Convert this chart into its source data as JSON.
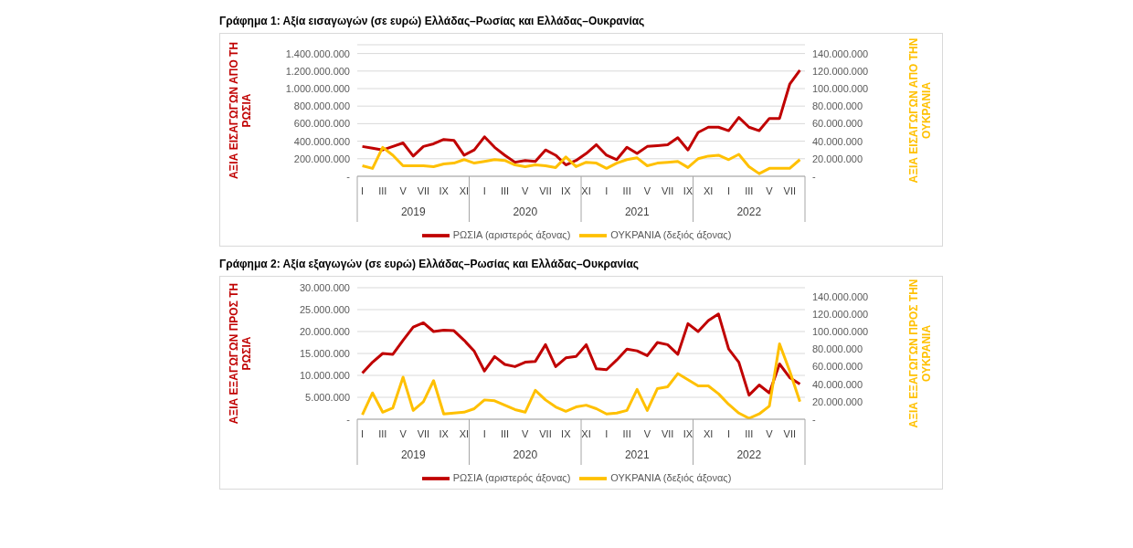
{
  "chart_data": [
    {
      "type": "line",
      "title": "Γράφημα 1: Αξία εισαγωγών (σε ευρώ) Ελλάδας–Ρωσίας και Ελλάδας–Ουκρανίας",
      "ylabel": "ΑΞΙΑ ΕΙΣΑΓΩΓΩΝ ΑΠΟ ΤΗ ΡΩΣΙΑ",
      "y2label": "ΑΞΙΑ ΕΙΣΑΓΩΓΩΝ ΑΠΟ ΤΗΝ ΟΥΚΡΑΝΙΑ",
      "categories": [
        "I",
        null,
        "III",
        null,
        "V",
        null,
        "VII",
        null,
        "IX",
        null,
        "XI",
        null,
        "I",
        null,
        "III",
        null,
        "V",
        null,
        "VII",
        null,
        "IX",
        null,
        "XI",
        null,
        "I",
        null,
        "III",
        null,
        "V",
        null,
        "VII",
        null,
        "IX",
        null,
        "XI",
        null,
        "I",
        null,
        "III",
        null,
        "V",
        null,
        "VII",
        null
      ],
      "annotations": [
        "2019",
        "2020",
        "2021",
        "2022"
      ],
      "series": [
        {
          "name": "ΡΩΣΙΑ (αριστερός άξονας)",
          "color": "#c00000",
          "values": [
            340000000,
            320000000,
            300000000,
            340000000,
            380000000,
            230000000,
            340000000,
            370000000,
            420000000,
            410000000,
            240000000,
            300000000,
            450000000,
            330000000,
            240000000,
            160000000,
            180000000,
            170000000,
            300000000,
            240000000,
            130000000,
            180000000,
            260000000,
            360000000,
            240000000,
            190000000,
            330000000,
            260000000,
            340000000,
            350000000,
            360000000,
            440000000,
            300000000,
            500000000,
            560000000,
            560000000,
            520000000,
            670000000,
            560000000,
            520000000,
            660000000,
            660000000,
            1050000000,
            1210000000
          ]
        },
        {
          "name": "ΟΥΚΡΑΝΙΑ (δεξιός άξονας)",
          "color": "#ffc000",
          "axis": "y2",
          "values": [
            12000000,
            9000000,
            33000000,
            24000000,
            12000000,
            12000000,
            12000000,
            11000000,
            14000000,
            15000000,
            19000000,
            15000000,
            17000000,
            19000000,
            18000000,
            13000000,
            11000000,
            13000000,
            12000000,
            10000000,
            22000000,
            11000000,
            16000000,
            15000000,
            9000000,
            15000000,
            19000000,
            21000000,
            12000000,
            15000000,
            16000000,
            17000000,
            10000000,
            20000000,
            23000000,
            24000000,
            19000000,
            25000000,
            11000000,
            3000000,
            9000000,
            9000000,
            9000000,
            19000000
          ]
        }
      ],
      "ylim": [
        0,
        1500000000
      ],
      "yticks": [
        {
          "value": 0,
          "label": "-"
        },
        {
          "value": 200000000,
          "label": "200.000.000"
        },
        {
          "value": 400000000,
          "label": "400.000.000"
        },
        {
          "value": 600000000,
          "label": "600.000.000"
        },
        {
          "value": 800000000,
          "label": "800.000.000"
        },
        {
          "value": 1000000000,
          "label": "1.000.000.000"
        },
        {
          "value": 1200000000,
          "label": "1.200.000.000"
        },
        {
          "value": 1400000000,
          "label": "1.400.000.000"
        }
      ],
      "y2lim": [
        0,
        150000000
      ],
      "y2ticks": [
        {
          "value": 0,
          "label": "-"
        },
        {
          "value": 20000000,
          "label": "20.000.000"
        },
        {
          "value": 40000000,
          "label": "40.000.000"
        },
        {
          "value": 60000000,
          "label": "60.000.000"
        },
        {
          "value": 80000000,
          "label": "80.000.000"
        },
        {
          "value": 100000000,
          "label": "100.000.000"
        },
        {
          "value": 120000000,
          "label": "120.000.000"
        },
        {
          "value": 140000000,
          "label": "140.000.000"
        }
      ],
      "grid": "y",
      "legend": "bottom",
      "marker": "none",
      "line_style": "solid"
    },
    {
      "type": "line",
      "title": "Γράφημα 2: Αξία εξαγωγών (σε ευρώ) Ελλάδας–Ρωσίας και Ελλάδας–Ουκρανίας",
      "ylabel": "ΑΞΙΑ ΕΞΑΓΩΓΩΝ ΠΡΟΣ ΤΗ ΡΩΣΙΑ",
      "y2label": "ΑΞΙΑ ΕΞΑΓΩΓΩΝ ΠΡΟΣ ΤΗΝ ΟΥΚΡΑΝΙΑ",
      "categories": [
        "I",
        null,
        "III",
        null,
        "V",
        null,
        "VII",
        null,
        "IX",
        null,
        "XI",
        null,
        "I",
        null,
        "III",
        null,
        "V",
        null,
        "VII",
        null,
        "IX",
        null,
        "XI",
        null,
        "I",
        null,
        "III",
        null,
        "V",
        null,
        "VII",
        null,
        "IX",
        null,
        "XI",
        null,
        "I",
        null,
        "III",
        null,
        "V",
        null,
        "VII",
        null
      ],
      "annotations": [
        "2019",
        "2020",
        "2021",
        "2022"
      ],
      "series": [
        {
          "name": "ΡΩΣΙΑ (αριστερός άξονας)",
          "color": "#c00000",
          "values": [
            10500000,
            13000000,
            15000000,
            14800000,
            18000000,
            21000000,
            22000000,
            20000000,
            20300000,
            20200000,
            18000000,
            15500000,
            11000000,
            14300000,
            12500000,
            12000000,
            13000000,
            13200000,
            17000000,
            12000000,
            14000000,
            14300000,
            17000000,
            11500000,
            11300000,
            13500000,
            16000000,
            15600000,
            14500000,
            17500000,
            17000000,
            14800000,
            21800000,
            20000000,
            22500000,
            24000000,
            16000000,
            13000000,
            5500000,
            7800000,
            6000000,
            12600000,
            9500000,
            8000000
          ]
        },
        {
          "name": "ΟΥΚΡΑΝΙΑ (δεξιός άξονας)",
          "color": "#ffc000",
          "axis": "y2",
          "values": [
            5000000,
            30000000,
            8000000,
            13000000,
            48000000,
            10000000,
            20000000,
            44000000,
            6000000,
            7000000,
            8000000,
            12000000,
            22000000,
            21000000,
            16000000,
            11000000,
            8000000,
            33000000,
            22000000,
            14000000,
            9000000,
            14000000,
            16000000,
            12000000,
            6000000,
            7000000,
            10000000,
            34000000,
            10000000,
            35000000,
            37000000,
            52000000,
            45000000,
            38000000,
            38000000,
            29000000,
            17000000,
            7000000,
            1000000,
            6000000,
            15000000,
            86000000,
            55000000,
            20000000
          ]
        }
      ],
      "ylim": [
        0,
        30000000
      ],
      "yticks": [
        {
          "value": 0,
          "label": "-"
        },
        {
          "value": 5000000,
          "label": "5.000.000"
        },
        {
          "value": 10000000,
          "label": "10.000.000"
        },
        {
          "value": 15000000,
          "label": "15.000.000"
        },
        {
          "value": 20000000,
          "label": "20.000.000"
        },
        {
          "value": 25000000,
          "label": "25.000.000"
        },
        {
          "value": 30000000,
          "label": "30.000.000"
        }
      ],
      "y2lim": [
        0,
        150000000
      ],
      "y2ticks": [
        {
          "value": 0,
          "label": "-"
        },
        {
          "value": 20000000,
          "label": "20.000.000"
        },
        {
          "value": 40000000,
          "label": "40.000.000"
        },
        {
          "value": 60000000,
          "label": "60.000.000"
        },
        {
          "value": 80000000,
          "label": "80.000.000"
        },
        {
          "value": 100000000,
          "label": "100.000.000"
        },
        {
          "value": 120000000,
          "label": "120.000.000"
        },
        {
          "value": 140000000,
          "label": "140.000.000"
        }
      ],
      "grid": "y",
      "legend": "bottom",
      "marker": "none",
      "line_style": "solid"
    }
  ]
}
